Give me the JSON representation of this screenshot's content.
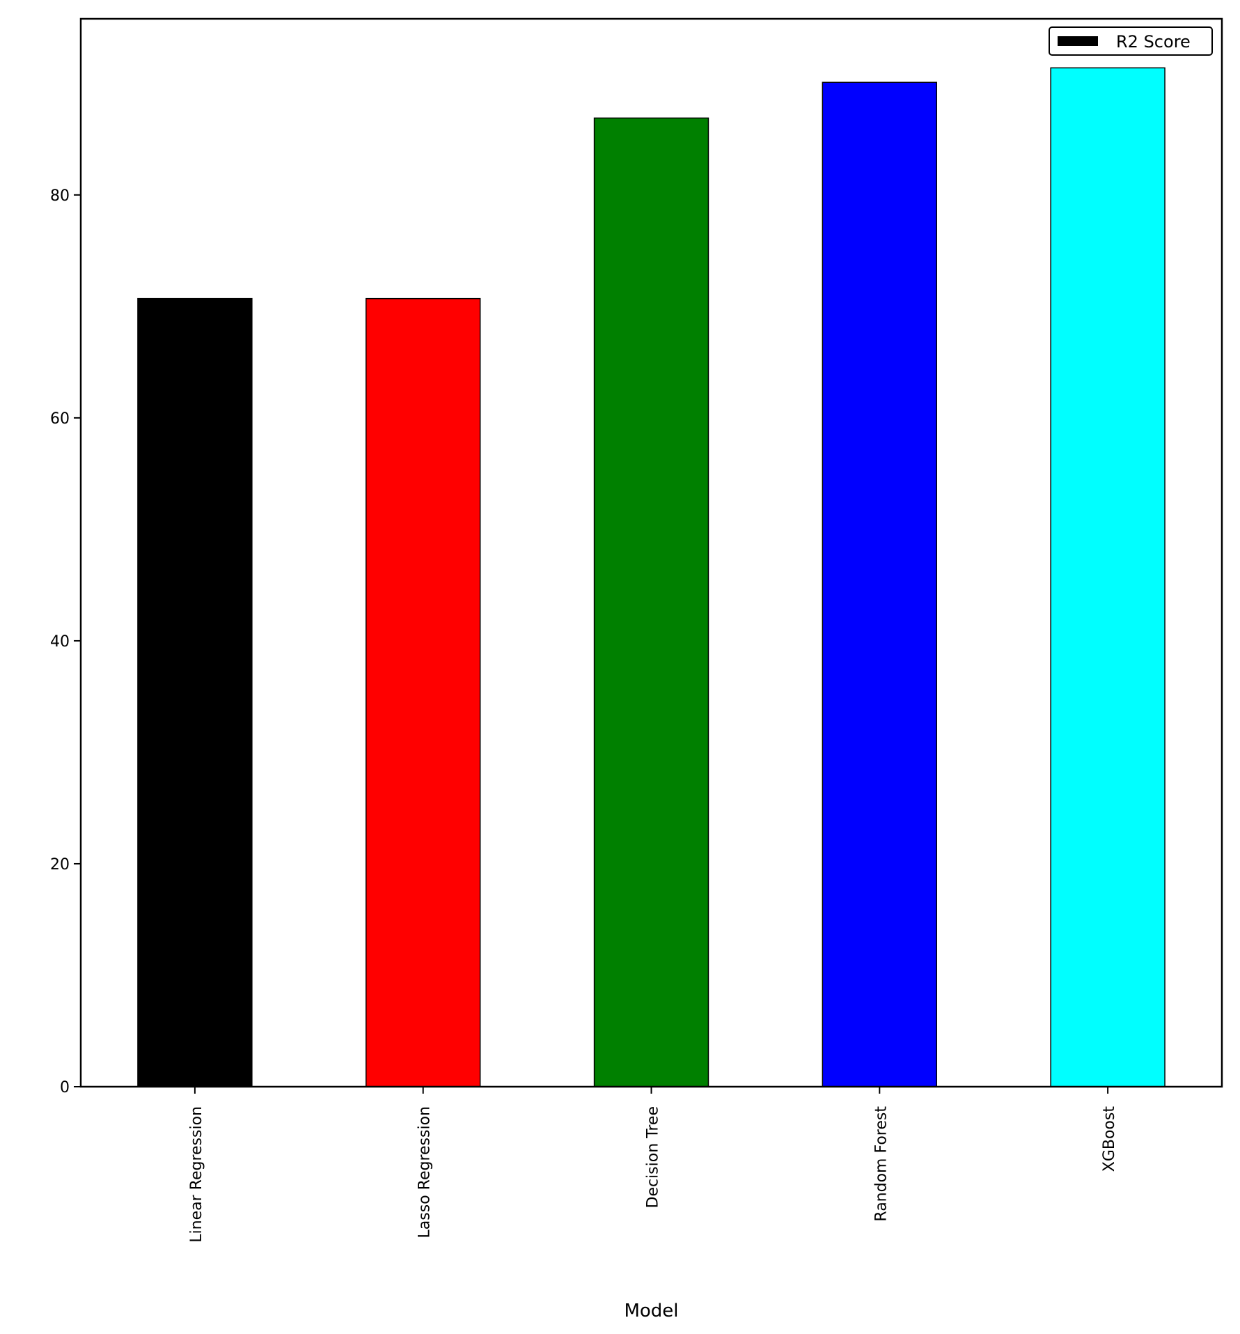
{
  "chart_data": {
    "type": "bar",
    "categories": [
      "Linear Regression",
      "Lasso Regression",
      "Decision Tree",
      "Random Forest",
      "XGBoost"
    ],
    "series": [
      {
        "name": "R2 Score",
        "values": [
          70.7,
          70.7,
          86.9,
          90.1,
          91.4
        ],
        "colors": [
          "#000000",
          "#ff0000",
          "#008000",
          "#0000ff",
          "#00ffff"
        ],
        "legend_color": "#000000"
      }
    ],
    "xlabel": "Model",
    "ylabel": "",
    "ylim": [
      0,
      95.8
    ],
    "yticks": [
      0,
      20,
      40,
      60,
      80
    ],
    "ytick_labels": [
      "0",
      "20",
      "40",
      "60",
      "80"
    ],
    "grid": false,
    "legend_position": "top-right"
  }
}
